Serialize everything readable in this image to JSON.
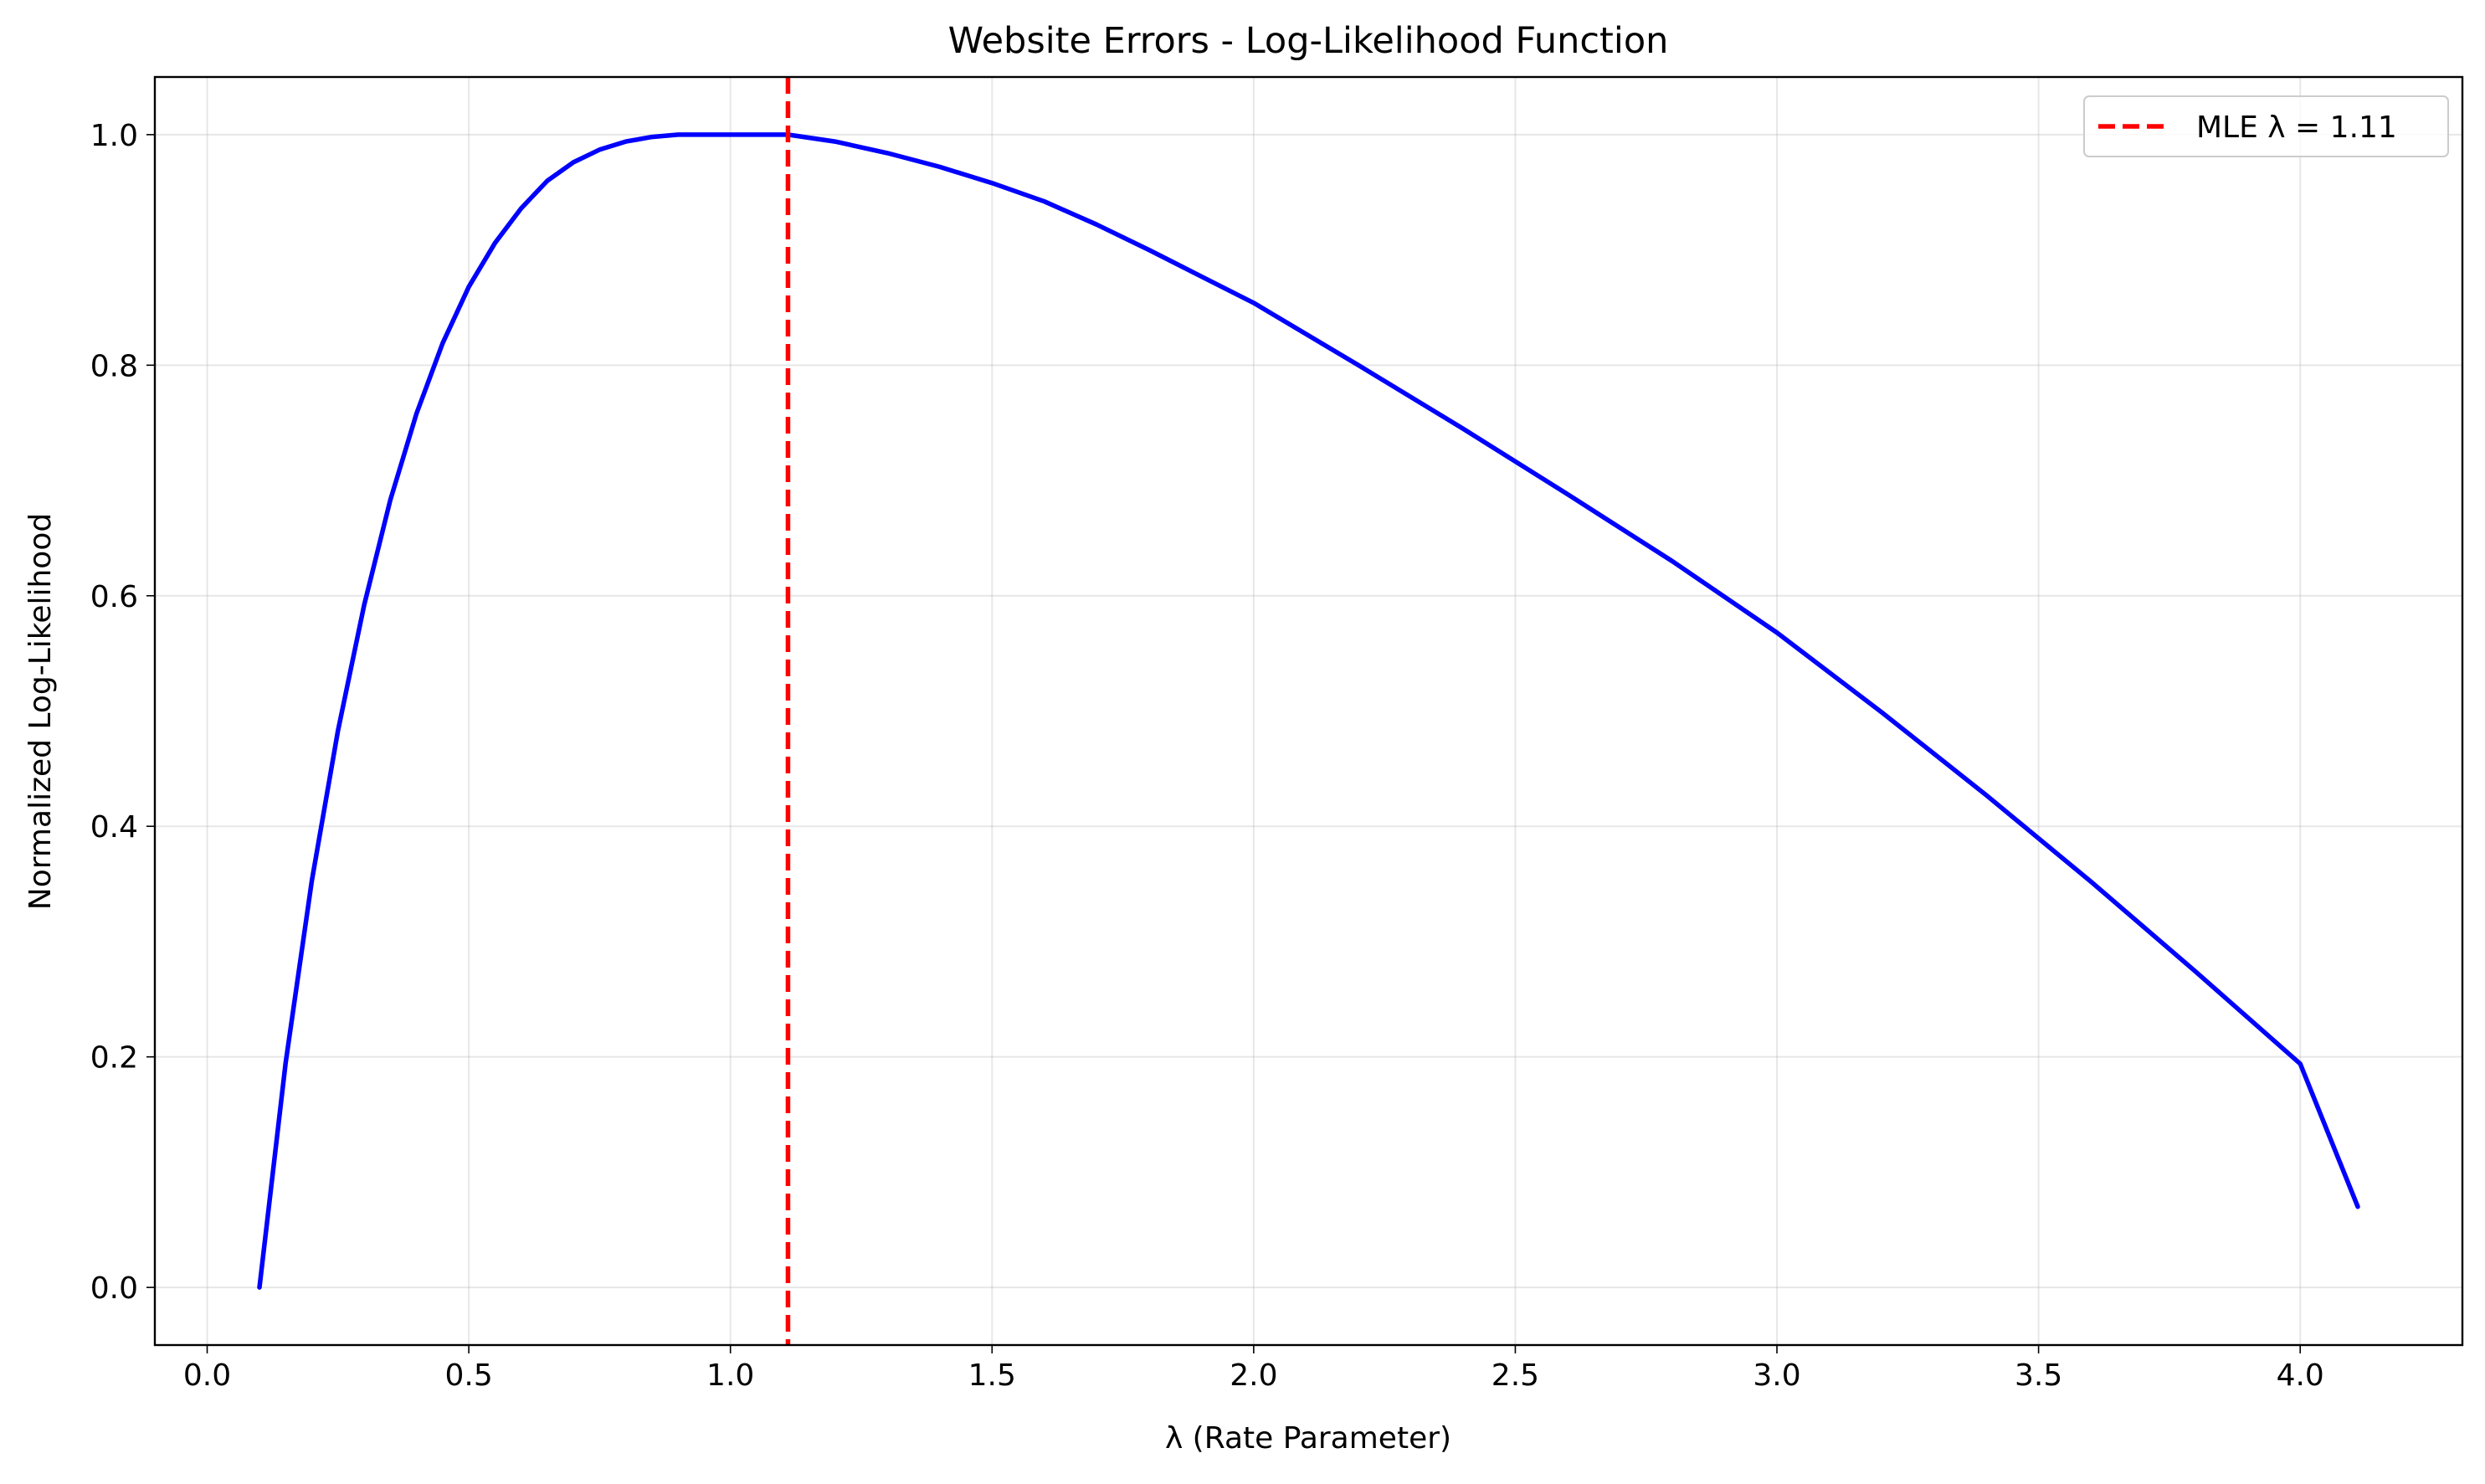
{
  "chart_data": {
    "type": "line",
    "title": "Website Errors - Log-Likelihood Function",
    "xlabel": "λ (Rate Parameter)",
    "ylabel": "Normalized Log-Likelihood",
    "xlim": [
      -0.1,
      4.31
    ],
    "ylim": [
      -0.05,
      1.05
    ],
    "xticks": [
      0.0,
      0.5,
      1.0,
      1.5,
      2.0,
      2.5,
      3.0,
      3.5,
      4.0
    ],
    "xtick_labels": [
      "0.0",
      "0.5",
      "1.0",
      "1.5",
      "2.0",
      "2.5",
      "3.0",
      "3.5",
      "4.0"
    ],
    "yticks": [
      0.0,
      0.2,
      0.4,
      0.6,
      0.8,
      1.0
    ],
    "ytick_labels": [
      "0.0",
      "0.2",
      "0.4",
      "0.6",
      "0.8",
      "1.0"
    ],
    "grid": true,
    "legend_position": "top-right",
    "series": [
      {
        "color": "#0000ff",
        "style": "solid",
        "x": [
          0.1,
          0.15,
          0.2,
          0.25,
          0.3,
          0.35,
          0.4,
          0.45,
          0.5,
          0.55,
          0.6,
          0.65,
          0.7,
          0.75,
          0.8,
          0.85,
          0.9,
          0.95,
          1.0,
          1.05,
          1.11,
          1.2,
          1.3,
          1.4,
          1.5,
          1.6,
          1.7,
          1.8,
          1.9,
          2.0,
          2.2,
          2.4,
          2.6,
          2.8,
          3.0,
          3.2,
          3.4,
          3.6,
          3.8,
          4.0,
          4.11
        ],
        "y": [
          0.0,
          0.195,
          0.353,
          0.483,
          0.592,
          0.683,
          0.758,
          0.819,
          0.868,
          0.906,
          0.936,
          0.96,
          0.976,
          0.987,
          0.994,
          0.998,
          1.0,
          1.0,
          1.0,
          1.0,
          1.0,
          0.994,
          0.984,
          0.972,
          0.958,
          0.942,
          0.922,
          0.9,
          0.877,
          0.854,
          0.8,
          0.745,
          0.688,
          0.63,
          0.568,
          0.499,
          0.427,
          0.352,
          0.274,
          0.194,
          0.07
        ]
      },
      {
        "name": "MLE λ = 1.11",
        "color": "#ff0000",
        "style": "dashed",
        "vline_x": 1.11
      }
    ]
  }
}
